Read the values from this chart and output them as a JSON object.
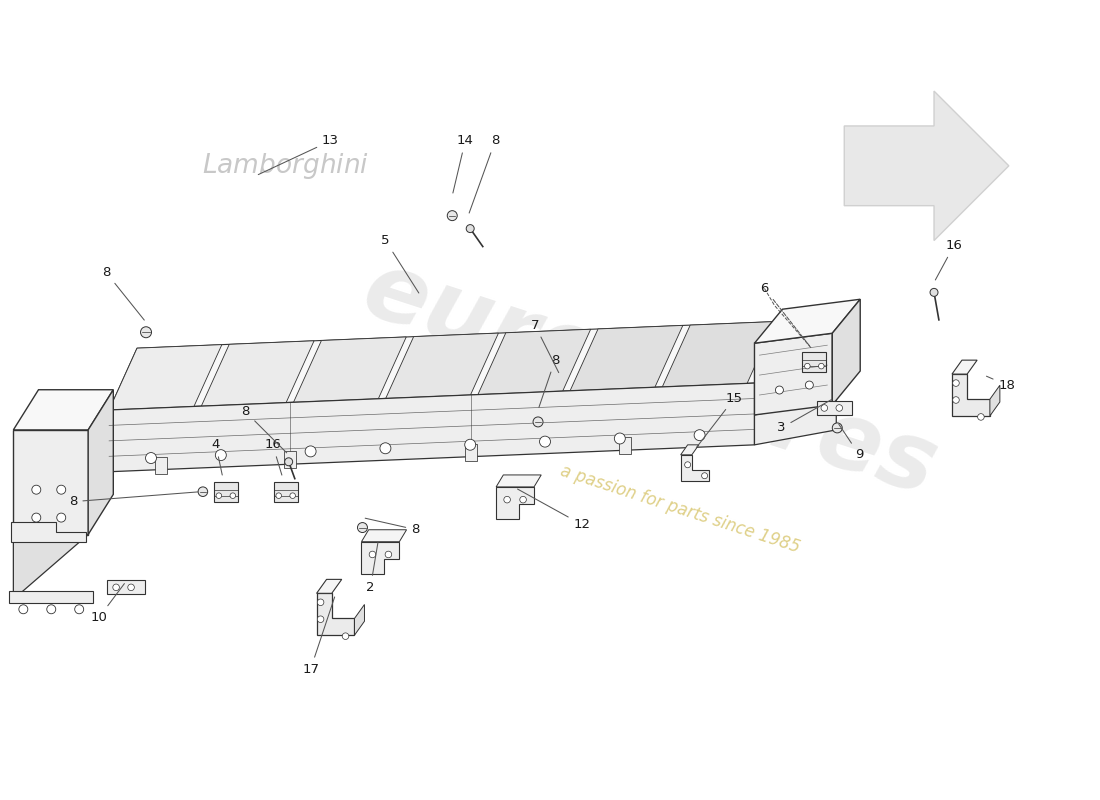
{
  "background_color": "#ffffff",
  "watermark_text1": "eurospares",
  "watermark_text2": "a passion for parts since 1985",
  "label_color": "#1a1a1a",
  "line_color": "#333333",
  "leader_color": "#555555",
  "fill_light": "#f8f8f8",
  "fill_mid": "#eeeeee",
  "fill_dark": "#e0e0e0",
  "fill_darkest": "#d0d0d0",
  "wm_arrow_color": "#e8e8e8",
  "wm_text_color": "#d8d8d8",
  "wm_italic_color": "#d4c060",
  "script_color": "#c8c8c8"
}
